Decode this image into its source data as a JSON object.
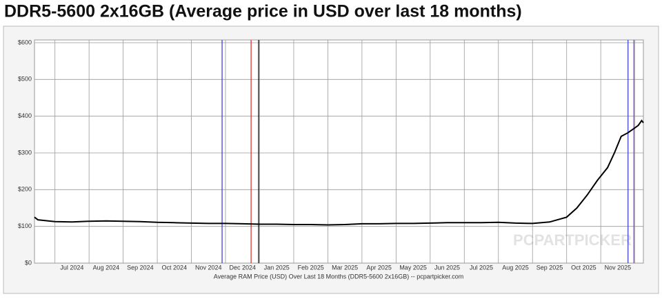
{
  "chart_data": {
    "type": "line",
    "title": "DDR5-5600 2x16GB (Average price in USD over last 18 months)",
    "x_label": "Average RAM Price (USD) Over Last 18 Months (DDR5-5600 2x16GB) -- pcpartpicker.com",
    "watermark": "PCPARTPICKER",
    "x": [
      -0.6,
      -0.5,
      0,
      0.5,
      1,
      1.5,
      2,
      2.5,
      3,
      3.5,
      4,
      4.5,
      5,
      5.5,
      6,
      6.5,
      7,
      7.5,
      8,
      8.5,
      9,
      9.5,
      10,
      10.5,
      11,
      11.5,
      12,
      12.5,
      13,
      13.5,
      14,
      14.5,
      15,
      15.3,
      15.6,
      15.9,
      16.2,
      16.4,
      16.6,
      16.8,
      17,
      17.1,
      17.2,
      17.25
    ],
    "series": [
      {
        "name": "Average price",
        "color": "#000000",
        "values": [
          125,
          118,
          113,
          112,
          114,
          115,
          114,
          113,
          111,
          110,
          109,
          108,
          108,
          107,
          106,
          106,
          105,
          105,
          104,
          105,
          107,
          107,
          108,
          108,
          109,
          110,
          110,
          110,
          111,
          109,
          108,
          112,
          125,
          150,
          185,
          225,
          260,
          300,
          345,
          355,
          368,
          375,
          388,
          382
        ]
      }
    ],
    "vlines": [
      {
        "x": 4.9,
        "color": "#3333cc"
      },
      {
        "x": 5.75,
        "color": "#dd2222"
      },
      {
        "x": 5.97,
        "color": "#000000"
      },
      {
        "x": 16.8,
        "color": "#3333cc"
      },
      {
        "x": 16.97,
        "color": "#7744bb"
      }
    ],
    "xlim": [
      -0.6,
      17.25
    ],
    "xticks": [
      {
        "value": 0,
        "label": "Jul 2024"
      },
      {
        "value": 1,
        "label": "Aug 2024"
      },
      {
        "value": 2,
        "label": "Sep 2024"
      },
      {
        "value": 3,
        "label": "Oct 2024"
      },
      {
        "value": 4,
        "label": "Nov 2024"
      },
      {
        "value": 5,
        "label": "Dec 2024"
      },
      {
        "value": 6,
        "label": "Jan 2025"
      },
      {
        "value": 7,
        "label": "Feb 2025"
      },
      {
        "value": 8,
        "label": "Mar 2025"
      },
      {
        "value": 9,
        "label": "Apr 2025"
      },
      {
        "value": 10,
        "label": "May 2025"
      },
      {
        "value": 11,
        "label": "Jun 2025"
      },
      {
        "value": 12,
        "label": "Jul 2025"
      },
      {
        "value": 13,
        "label": "Aug 2025"
      },
      {
        "value": 14,
        "label": "Sep 2025"
      },
      {
        "value": 15,
        "label": "Oct 2025"
      },
      {
        "value": 16,
        "label": "Nov 2025"
      },
      {
        "value": 17,
        "label": ""
      }
    ],
    "ylim": [
      0,
      600
    ],
    "yticks": [
      {
        "value": 0,
        "label": "$0"
      },
      {
        "value": 100,
        "label": "$100"
      },
      {
        "value": 200,
        "label": "$200"
      },
      {
        "value": 300,
        "label": "$300"
      },
      {
        "value": 400,
        "label": "$400"
      },
      {
        "value": 500,
        "label": "$500"
      },
      {
        "value": 600,
        "label": "$600"
      }
    ],
    "grid": true
  }
}
